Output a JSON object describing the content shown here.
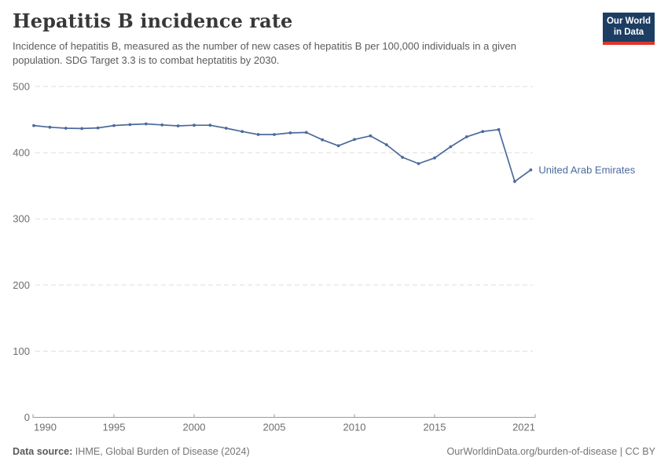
{
  "header": {
    "title": "Hepatitis B incidence rate",
    "subtitle": "Incidence of hepatitis B, measured as the number of new cases of hepatitis B per 100,000 individuals in a given population. SDG Target 3.3 is to combat heptatitis by 2030.",
    "logo": {
      "line1": "Our World",
      "line2": "in Data",
      "bg_color": "#1d3d63",
      "accent_color": "#dd352a"
    }
  },
  "chart_data": {
    "type": "line",
    "title": "Hepatitis B incidence rate",
    "x": [
      1990,
      1991,
      1992,
      1993,
      1994,
      1995,
      1996,
      1997,
      1998,
      1999,
      2000,
      2001,
      2002,
      2003,
      2004,
      2005,
      2006,
      2007,
      2008,
      2009,
      2010,
      2011,
      2012,
      2013,
      2014,
      2015,
      2016,
      2017,
      2018,
      2019,
      2020,
      2021
    ],
    "series": [
      {
        "name": "United Arab Emirates",
        "color": "#4c6a9c",
        "values": [
          441,
          438.5,
          437,
          436.5,
          437.5,
          441,
          442.5,
          443.5,
          442,
          440.5,
          441.5,
          441.5,
          437,
          432,
          427.5,
          427.5,
          430,
          430.5,
          419.5,
          410.5,
          420,
          425.5,
          412,
          393,
          383.5,
          392,
          409,
          424,
          432,
          435,
          356.5,
          374
        ]
      }
    ],
    "xlim": [
      1990,
      2021
    ],
    "ylim": [
      0,
      500
    ],
    "xticks": [
      1990,
      1995,
      2000,
      2005,
      2010,
      2015,
      2021
    ],
    "yticks": [
      0,
      100,
      200,
      300,
      400,
      500
    ],
    "grid": "horizontal-dashed",
    "grid_color": "#dddddd",
    "axis_color": "#9a9a9a",
    "tick_label_color": "#6e6e6e",
    "legend_position": "end-of-line-label"
  },
  "footer": {
    "datasource_label": "Data source:",
    "datasource_value": " IHME, Global Burden of Disease (2024)",
    "credit": "OurWorldinData.org/burden-of-disease | CC BY"
  }
}
